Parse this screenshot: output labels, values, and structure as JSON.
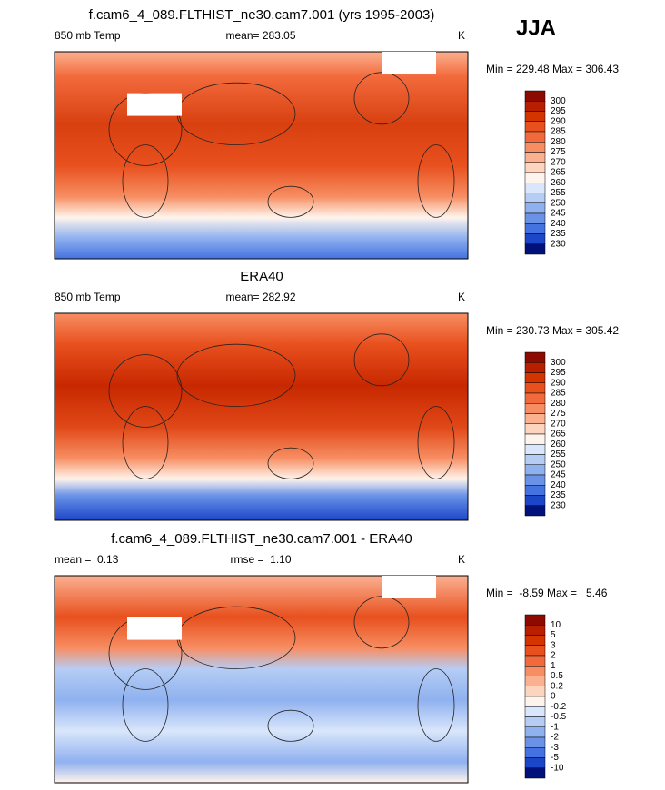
{
  "title": "JJA",
  "panels": [
    {
      "title": "f.cam6_4_089.FLTHIST_ne30.cam7.001 (yrs 1995-2003)",
      "left_label": "850 mb Temp",
      "center_label": "mean= 283.05",
      "units": "K",
      "min_max": "Min = 229.48 Max = 306.43",
      "colorbar": {
        "levels": [
          300,
          295,
          290,
          285,
          280,
          275,
          270,
          265,
          260,
          255,
          250,
          245,
          240,
          235,
          230
        ],
        "colors": [
          "#8c0a00",
          "#b81e00",
          "#d43400",
          "#e8501e",
          "#f26a3c",
          "#f78e63",
          "#fbb090",
          "#fdd4bd",
          "#fff4ec",
          "#d9e6fb",
          "#b5cdf5",
          "#8fb1ef",
          "#6a93e8",
          "#4472e0",
          "#1c46c8",
          "#00127a"
        ]
      }
    },
    {
      "title": "ERA40",
      "left_label": "850 mb Temp",
      "center_label": "mean= 282.92",
      "units": "K",
      "min_max": "Min = 230.73 Max = 305.42",
      "colorbar": {
        "levels": [
          300,
          295,
          290,
          285,
          280,
          275,
          270,
          265,
          260,
          255,
          250,
          245,
          240,
          235,
          230
        ],
        "colors": [
          "#8c0a00",
          "#b81e00",
          "#d43400",
          "#e8501e",
          "#f26a3c",
          "#f78e63",
          "#fbb090",
          "#fdd4bd",
          "#fff4ec",
          "#d9e6fb",
          "#b5cdf5",
          "#8fb1ef",
          "#6a93e8",
          "#4472e0",
          "#1c46c8",
          "#00127a"
        ]
      }
    },
    {
      "title": "f.cam6_4_089.FLTHIST_ne30.cam7.001 - ERA40",
      "left_label": "mean =  0.13",
      "center_label": "rmse =  1.10",
      "units": "K",
      "min_max": "Min =  -8.59 Max =   5.46",
      "colorbar": {
        "levels": [
          10,
          5,
          3,
          2,
          1,
          0.5,
          0.2,
          0,
          -0.2,
          -0.5,
          -1,
          -2,
          -3,
          -5,
          -10
        ],
        "colors": [
          "#8c0a00",
          "#b81e00",
          "#d43400",
          "#e8501e",
          "#f26a3c",
          "#f78e63",
          "#fbb090",
          "#fdd4bd",
          "#fff4ec",
          "#d9e6fb",
          "#b5cdf5",
          "#8fb1ef",
          "#6a93e8",
          "#4472e0",
          "#1c46c8",
          "#00127a"
        ]
      }
    }
  ]
}
